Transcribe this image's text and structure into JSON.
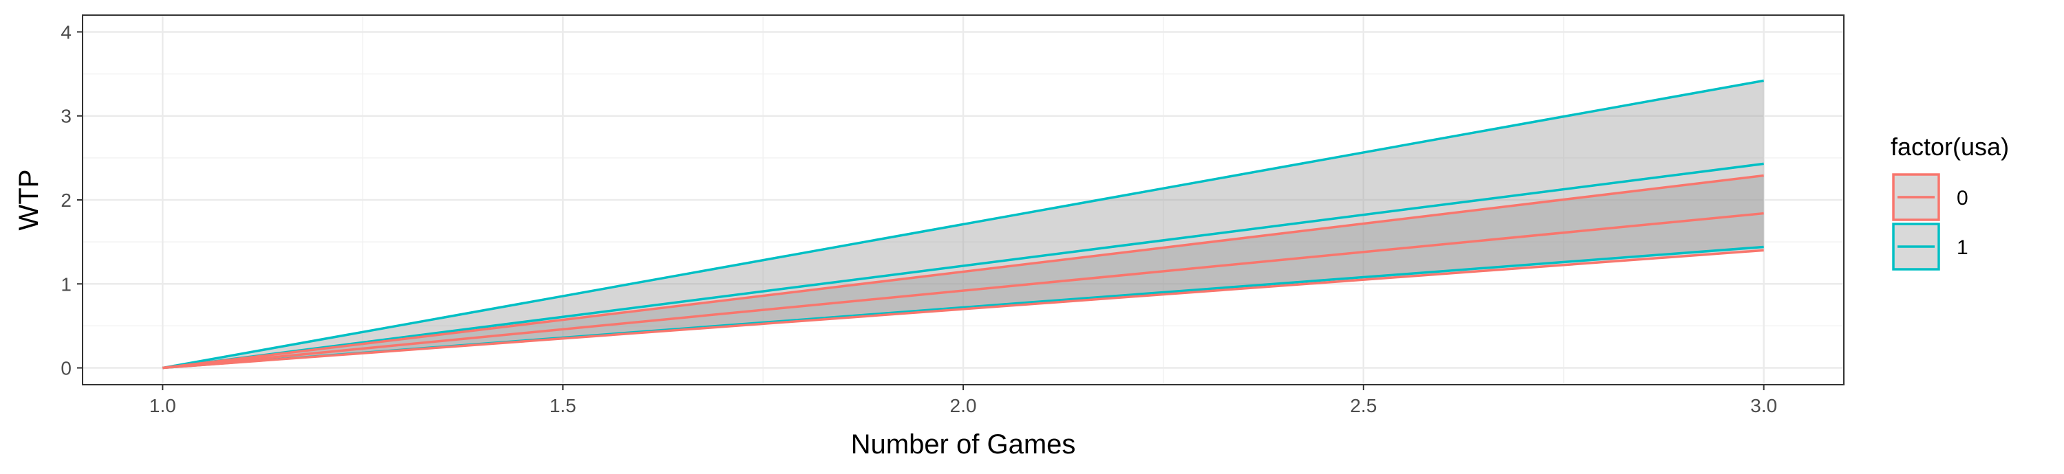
{
  "chart_data": {
    "type": "area",
    "xlabel": "Number of Games",
    "ylabel": "WTP",
    "xlim": [
      0.9,
      3.1
    ],
    "ylim": [
      -0.2,
      4.2
    ],
    "x_ticks": [
      1.0,
      1.5,
      2.0,
      2.5,
      3.0
    ],
    "x_tick_labels": [
      "1.0",
      "1.5",
      "2.0",
      "2.5",
      "3.0"
    ],
    "y_ticks": [
      0,
      1,
      2,
      3,
      4
    ],
    "y_tick_labels": [
      "0",
      "1",
      "2",
      "3",
      "4"
    ],
    "grid": true,
    "legend": {
      "title": "factor(usa)",
      "position": "right",
      "entries": [
        {
          "label": "0",
          "color": "#F8766D"
        },
        {
          "label": "1",
          "color": "#00BFC4"
        }
      ]
    },
    "series": [
      {
        "name": "0",
        "color": "#F8766D",
        "x": [
          1.0,
          3.0
        ],
        "mean": [
          0,
          1.84
        ],
        "lower": [
          0,
          1.4
        ],
        "upper": [
          0,
          2.29
        ]
      },
      {
        "name": "1",
        "color": "#00BFC4",
        "x": [
          1.0,
          3.0
        ],
        "mean": [
          0,
          2.43
        ],
        "lower": [
          0,
          1.44
        ],
        "upper": [
          0,
          3.42
        ]
      }
    ]
  }
}
